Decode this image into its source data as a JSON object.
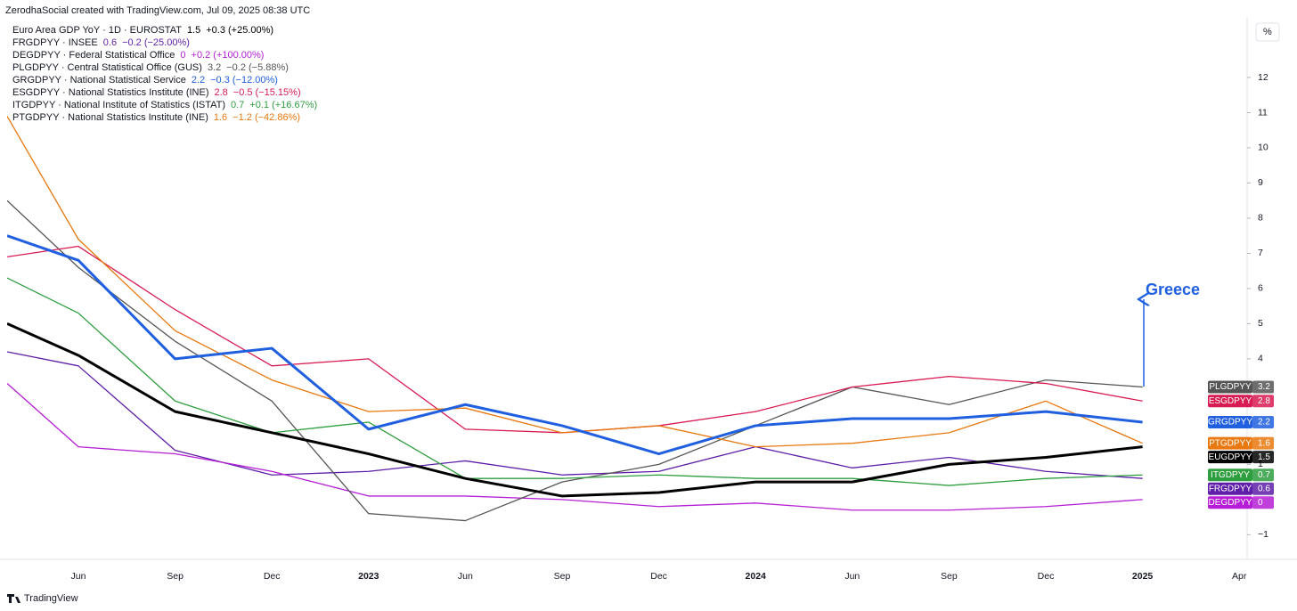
{
  "chart_data": {
    "type": "line",
    "attribution": "ZerodhaSocial created with TradingView.com, Jul 09, 2025 08:38 UTC",
    "brand": "TradingView",
    "unit_label": "%",
    "annotation": "Greece",
    "categories": [
      null,
      "Jun",
      "Sep",
      "Dec",
      "2023",
      "Jun",
      "Sep",
      "Dec",
      "2024",
      "Jun",
      "Sep",
      "Dec",
      "2025",
      "Apr"
    ],
    "ylim": [
      -1.7,
      14
    ],
    "yticks": [
      {
        "value": -1,
        "label": "−1"
      },
      1,
      4,
      5,
      6,
      7,
      8,
      9,
      10,
      11,
      12
    ],
    "grid": false,
    "series": [
      {
        "name": "EUGDPYY",
        "description": "Euro Area GDP YoY · 1D · EUROSTAT",
        "change": "+0.3 (+25.00%)",
        "color": "#000000",
        "width": 3,
        "values": [
          5.0,
          4.1,
          2.5,
          1.9,
          1.3,
          0.6,
          0.1,
          0.2,
          0.5,
          0.5,
          1.0,
          1.2,
          1.5,
          null
        ]
      },
      {
        "name": "FRGDPYY",
        "description": "FRGDPYY · INSEE",
        "change": "−0.2 (−25.00%)",
        "color": "#5e1ea8",
        "width": 1.3,
        "values": [
          4.2,
          3.8,
          1.4,
          0.7,
          0.8,
          1.1,
          0.7,
          0.8,
          1.5,
          0.9,
          1.2,
          0.8,
          0.6,
          null
        ]
      },
      {
        "name": "DEGDPYY",
        "description": "DEGDPYY · Federal Statistical Office",
        "change": "+0.2 (+100.00%)",
        "color": "#b51ed6",
        "width": 1.3,
        "values": [
          3.3,
          1.5,
          1.3,
          0.8,
          0.1,
          0.1,
          0.0,
          -0.2,
          -0.1,
          -0.3,
          -0.3,
          -0.2,
          0,
          null
        ]
      },
      {
        "name": "PLGDPYY",
        "description": "PLGDPYY · Central Statistical Office (GUS)",
        "change": "−0.2 (−5.88%)",
        "color": "#555555",
        "width": 1.3,
        "values": [
          8.5,
          6.6,
          4.5,
          2.8,
          -0.4,
          -0.6,
          0.5,
          1.0,
          2.1,
          3.2,
          2.7,
          3.4,
          3.2,
          null
        ]
      },
      {
        "name": "GRGDPYY",
        "description": "GRGDPYY · National Statistical Service",
        "change": "−0.3 (−12.00%)",
        "color": "#1f5fe0",
        "width": 3,
        "values": [
          7.5,
          6.8,
          4.0,
          4.3,
          2.0,
          2.7,
          2.1,
          1.3,
          2.1,
          2.3,
          2.3,
          2.5,
          2.2,
          null
        ]
      },
      {
        "name": "ESGDPYY",
        "description": "ESGDPYY · National Statistics Institute (INE)",
        "change": "−0.5 (−15.15%)",
        "color": "#d81b52",
        "width": 1.3,
        "values": [
          6.9,
          7.2,
          5.4,
          3.8,
          4.0,
          2.0,
          1.9,
          2.1,
          2.5,
          3.2,
          3.5,
          3.3,
          2.8,
          null
        ]
      },
      {
        "name": "ITGDPYY",
        "description": "ITGDPYY · National Institute of Statistics (ISTAT)",
        "change": "+0.1 (+16.67%)",
        "color": "#2e9e3e",
        "width": 1.3,
        "values": [
          6.3,
          5.3,
          2.8,
          1.9,
          2.2,
          0.6,
          0.6,
          0.7,
          0.6,
          0.6,
          0.4,
          0.6,
          0.7,
          null
        ]
      },
      {
        "name": "PTGDPYY",
        "description": "PTGDPYY · National Statistics Institute (INE)",
        "change": "−1.2 (−42.86%)",
        "color": "#e8780f",
        "width": 1.3,
        "values": [
          10.9,
          7.4,
          4.8,
          3.4,
          2.5,
          2.6,
          1.9,
          2.1,
          1.5,
          1.6,
          1.9,
          2.8,
          1.6,
          null
        ]
      }
    ]
  }
}
